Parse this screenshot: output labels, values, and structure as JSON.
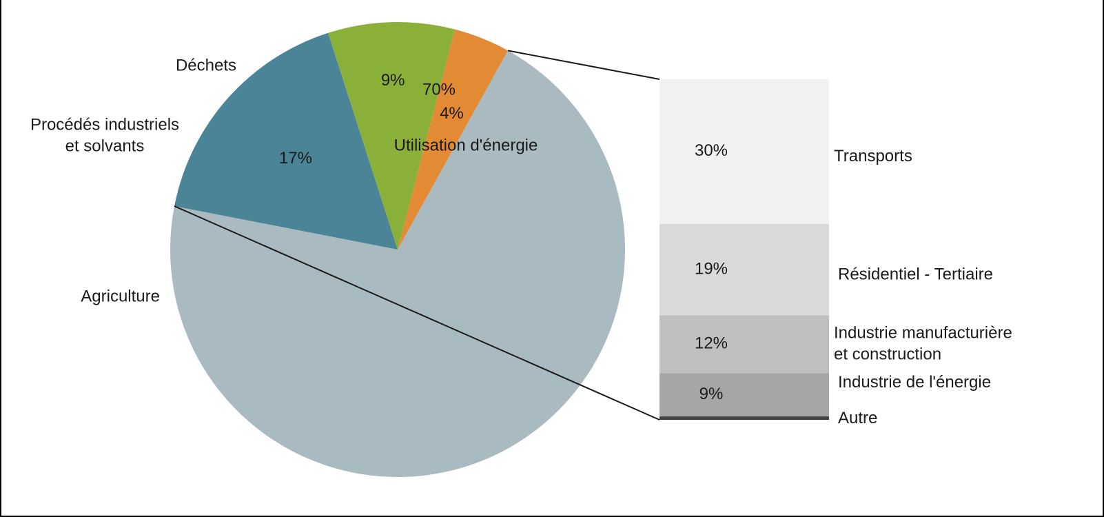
{
  "chart_data": {
    "type": "bar-of-pie",
    "pie": {
      "slices": [
        {
          "label": "Utilisation d'énergie",
          "value": 70,
          "value_label": "70%",
          "color": "#A9BAC1"
        },
        {
          "label": "Agriculture",
          "value": 17,
          "value_label": "17%",
          "color": "#4A8496"
        },
        {
          "label": "Procédés industriels et solvants",
          "label_lines": [
            "Procédés industriels",
            "et solvants"
          ],
          "value": 9,
          "value_label": "9%",
          "color": "#8BB03A"
        },
        {
          "label": "Déchets",
          "value": 4,
          "value_label": "4%",
          "color": "#E38A35"
        }
      ]
    },
    "breakdown": {
      "of": "Utilisation d'énergie",
      "segments": [
        {
          "label": "Transports",
          "value": 30,
          "value_label": "30%",
          "color": "#F2F2F2"
        },
        {
          "label": "Résidentiel - Tertiaire",
          "value": 19,
          "value_label": "19%",
          "color": "#D9D9D9"
        },
        {
          "label": "Industrie manufacturière et construction",
          "label_lines": [
            "Industrie manufacturière",
            "et construction"
          ],
          "value": 12,
          "value_label": "12%",
          "color": "#BFBFBF"
        },
        {
          "label": "Industrie de l'énergie",
          "value": 9,
          "value_label": "9%",
          "color": "#A6A6A6"
        },
        {
          "label": "Autre",
          "value": 0.7,
          "value_label": "",
          "color": "#404040"
        }
      ]
    }
  }
}
